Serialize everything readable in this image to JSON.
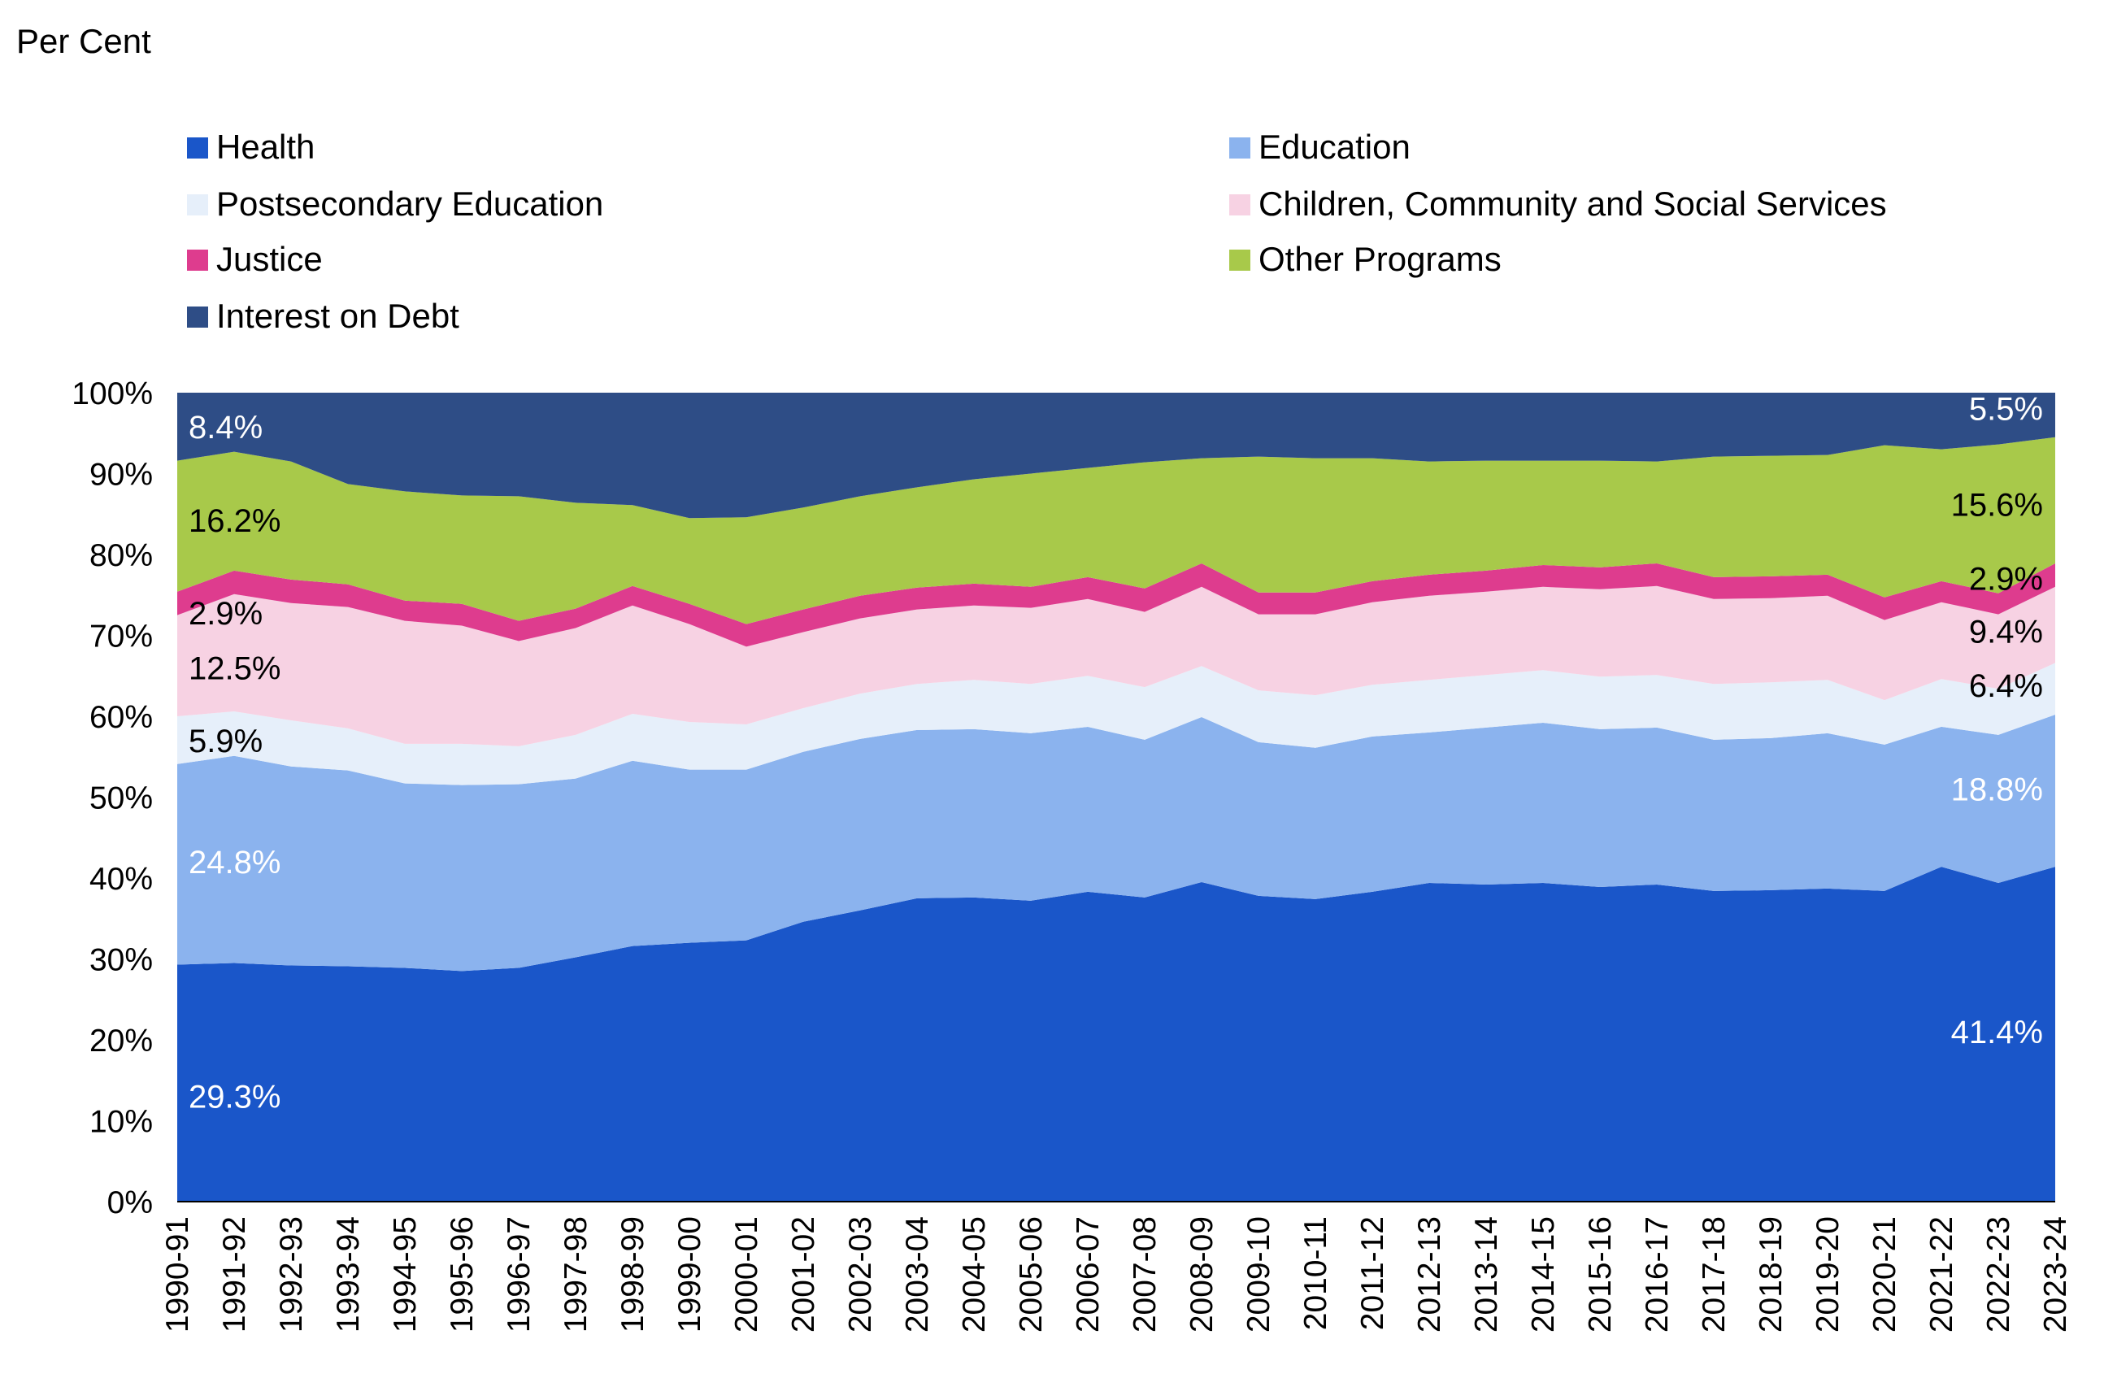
{
  "y_unit_label": "Per Cent",
  "legend": [
    {
      "label": "Health",
      "color": "#1A56C9"
    },
    {
      "label": "Education",
      "color": "#8BB3EE"
    },
    {
      "label": "Postsecondary Education",
      "color": "#E6EFFA"
    },
    {
      "label": "Children, Community and Social Services",
      "color": "#F7D2E3"
    },
    {
      "label": "Justice",
      "color": "#DE3C8E"
    },
    {
      "label": "Other Programs",
      "color": "#A8C94A"
    },
    {
      "label": "Interest on Debt",
      "color": "#2E4D86"
    }
  ],
  "legend_layout": "two-columns-top",
  "chart_data": {
    "type": "area",
    "stacked": true,
    "ylim": [
      0,
      100
    ],
    "yticks": [
      "0%",
      "10%",
      "20%",
      "30%",
      "40%",
      "50%",
      "60%",
      "70%",
      "80%",
      "90%",
      "100%"
    ],
    "categories": [
      "1990-91",
      "1991-92",
      "1992-93",
      "1993-94",
      "1994-95",
      "1995-96",
      "1996-97",
      "1997-98",
      "1998-99",
      "1999-00",
      "2000-01",
      "2001-02",
      "2002-03",
      "2003-04",
      "2004-05",
      "2005-06",
      "2006-07",
      "2007-08",
      "2008-09",
      "2009-10",
      "2010-11",
      "2011-12",
      "2012-13",
      "2013-14",
      "2014-15",
      "2015-16",
      "2016-17",
      "2017-18",
      "2018-19",
      "2019-20",
      "2020-21",
      "2021-22",
      "2022-23",
      "2023-24"
    ],
    "series": [
      {
        "name": "Health",
        "color": "#1A56C9",
        "values": [
          29.3,
          29.5,
          29.2,
          29.1,
          28.9,
          28.5,
          28.9,
          30.2,
          31.6,
          32.0,
          32.3,
          34.6,
          36.0,
          37.5,
          37.6,
          37.2,
          38.3,
          37.6,
          39.5,
          37.8,
          37.4,
          38.3,
          39.4,
          39.2,
          39.4,
          38.9,
          39.2,
          38.4,
          38.5,
          38.7,
          38.4,
          41.4,
          39.4,
          41.4
        ]
      },
      {
        "name": "Education",
        "color": "#8BB3EE",
        "values": [
          24.8,
          25.6,
          24.6,
          24.2,
          22.8,
          23.0,
          22.7,
          22.1,
          22.9,
          21.4,
          21.1,
          21.0,
          21.2,
          20.8,
          20.8,
          20.7,
          20.4,
          19.5,
          20.4,
          19.0,
          18.7,
          19.2,
          18.6,
          19.4,
          19.8,
          19.5,
          19.4,
          18.7,
          18.8,
          19.2,
          18.1,
          17.3,
          18.3,
          18.8
        ]
      },
      {
        "name": "Postsecondary Education",
        "color": "#E6EFFA",
        "values": [
          5.9,
          5.5,
          5.7,
          5.2,
          4.9,
          5.1,
          4.7,
          5.4,
          5.8,
          5.9,
          5.6,
          5.4,
          5.6,
          5.7,
          6.1,
          6.1,
          6.3,
          6.5,
          6.3,
          6.4,
          6.5,
          6.4,
          6.5,
          6.5,
          6.5,
          6.5,
          6.5,
          6.9,
          6.9,
          6.6,
          5.5,
          5.9,
          5.7,
          6.4
        ]
      },
      {
        "name": "Children, Community and Social Services",
        "color": "#F7D2E3",
        "values": [
          12.5,
          14.5,
          14.5,
          15.0,
          15.2,
          14.6,
          13.0,
          13.2,
          13.4,
          12.1,
          9.6,
          9.4,
          9.3,
          9.2,
          9.2,
          9.4,
          9.5,
          9.3,
          9.8,
          9.4,
          10.0,
          10.2,
          10.4,
          10.3,
          10.3,
          10.8,
          11.0,
          10.5,
          10.4,
          10.4,
          9.9,
          9.5,
          9.2,
          9.4
        ]
      },
      {
        "name": "Justice",
        "color": "#DE3C8E",
        "values": [
          2.9,
          2.9,
          2.9,
          2.8,
          2.5,
          2.7,
          2.5,
          2.4,
          2.4,
          2.5,
          2.8,
          2.8,
          2.8,
          2.7,
          2.7,
          2.6,
          2.7,
          2.9,
          2.9,
          2.7,
          2.7,
          2.6,
          2.6,
          2.6,
          2.7,
          2.7,
          2.8,
          2.7,
          2.7,
          2.6,
          2.8,
          2.6,
          2.6,
          2.9
        ]
      },
      {
        "name": "Other Programs",
        "color": "#A8C94A",
        "values": [
          16.2,
          14.7,
          14.6,
          12.4,
          13.5,
          13.4,
          15.4,
          13.1,
          10.0,
          10.6,
          13.2,
          12.6,
          12.3,
          12.4,
          12.9,
          14.0,
          13.5,
          15.6,
          13.0,
          16.8,
          16.6,
          15.2,
          14.0,
          13.6,
          12.9,
          13.2,
          12.6,
          14.9,
          14.9,
          14.8,
          18.8,
          16.3,
          18.4,
          15.6
        ]
      },
      {
        "name": "Interest on Debt",
        "color": "#2E4D86",
        "values": [
          8.4,
          7.3,
          8.5,
          11.3,
          12.2,
          12.7,
          12.8,
          13.6,
          13.9,
          15.5,
          15.4,
          14.2,
          12.8,
          11.7,
          10.7,
          10.0,
          9.3,
          8.6,
          8.1,
          7.9,
          8.1,
          8.1,
          8.5,
          8.4,
          8.4,
          8.4,
          8.5,
          7.9,
          7.8,
          7.7,
          6.5,
          7.0,
          6.4,
          5.5
        ]
      }
    ],
    "annotations": [
      {
        "text": "29.3%",
        "series": "Health",
        "at": "start",
        "color": "#FFFFFF"
      },
      {
        "text": "24.8%",
        "series": "Education",
        "at": "start",
        "color": "#FFFFFF"
      },
      {
        "text": "5.9%",
        "series": "Postsecondary Education",
        "at": "start",
        "color": "#000000"
      },
      {
        "text": "12.5%",
        "series": "Children, Community and Social Services",
        "at": "start",
        "color": "#000000"
      },
      {
        "text": "2.9%",
        "series": "Justice",
        "at": "start",
        "color": "#000000"
      },
      {
        "text": "16.2%",
        "series": "Other Programs",
        "at": "start",
        "color": "#000000"
      },
      {
        "text": "8.4%",
        "series": "Interest on Debt",
        "at": "start",
        "color": "#FFFFFF"
      },
      {
        "text": "41.4%",
        "series": "Health",
        "at": "end",
        "color": "#FFFFFF"
      },
      {
        "text": "18.8%",
        "series": "Education",
        "at": "end",
        "color": "#FFFFFF"
      },
      {
        "text": "6.4%",
        "series": "Postsecondary Education",
        "at": "end",
        "color": "#000000"
      },
      {
        "text": "9.4%",
        "series": "Children, Community and Social Services",
        "at": "end",
        "color": "#000000"
      },
      {
        "text": "2.9%",
        "series": "Justice",
        "at": "end",
        "color": "#000000"
      },
      {
        "text": "15.6%",
        "series": "Other Programs",
        "at": "end",
        "color": "#000000"
      },
      {
        "text": "5.5%",
        "series": "Interest on Debt",
        "at": "end",
        "color": "#FFFFFF"
      }
    ]
  }
}
